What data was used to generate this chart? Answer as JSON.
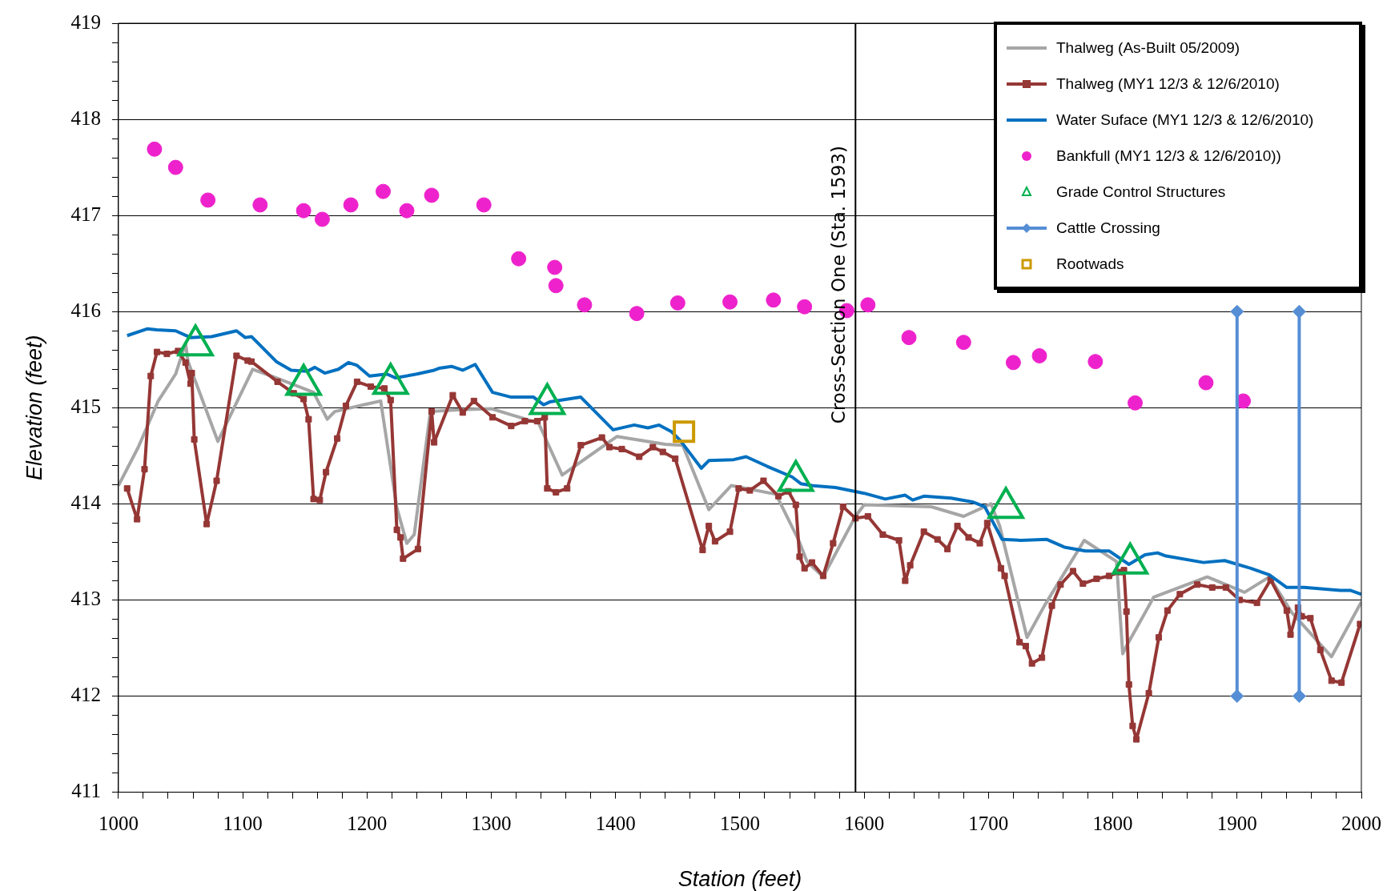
{
  "chart_data": {
    "type": "line",
    "xlabel": "Station (feet)",
    "ylabel": "Elevation (feet)",
    "xlim": [
      1000,
      2000
    ],
    "xticks": [
      1000,
      {
        "value": 1020,
        "label": null
      },
      {
        "value": 1040,
        "label": null
      },
      {
        "value": 1060,
        "label": null
      },
      {
        "value": 1080,
        "label": null
      },
      1100,
      {
        "value": 1120,
        "label": null
      },
      {
        "value": 1140,
        "label": null
      },
      {
        "value": 1160,
        "label": null
      },
      {
        "value": 1180,
        "label": null
      },
      1200,
      {
        "value": 1220,
        "label": null
      },
      {
        "value": 1240,
        "label": null
      },
      {
        "value": 1260,
        "label": null
      },
      {
        "value": 1280,
        "label": null
      },
      1300,
      {
        "value": 1320,
        "label": null
      },
      {
        "value": 1340,
        "label": null
      },
      {
        "value": 1360,
        "label": null
      },
      {
        "value": 1380,
        "label": null
      },
      1400,
      {
        "value": 1420,
        "label": null
      },
      {
        "value": 1440,
        "label": null
      },
      {
        "value": 1460,
        "label": null
      },
      {
        "value": 1480,
        "label": null
      },
      1500,
      {
        "value": 1520,
        "label": null
      },
      {
        "value": 1540,
        "label": null
      },
      {
        "value": 1560,
        "label": null
      },
      {
        "value": 1580,
        "label": null
      },
      1600,
      {
        "value": 1620,
        "label": null
      },
      {
        "value": 1640,
        "label": null
      },
      {
        "value": 1660,
        "label": null
      },
      {
        "value": 1680,
        "label": null
      },
      1700,
      {
        "value": 1720,
        "label": null
      },
      {
        "value": 1740,
        "label": null
      },
      {
        "value": 1760,
        "label": null
      },
      {
        "value": 1780,
        "label": null
      },
      1800,
      {
        "value": 1820,
        "label": null
      },
      {
        "value": 1840,
        "label": null
      },
      {
        "value": 1860,
        "label": null
      },
      {
        "value": 1880,
        "label": null
      },
      1900,
      {
        "value": 1920,
        "label": null
      },
      {
        "value": 1940,
        "label": null
      },
      {
        "value": 1960,
        "label": null
      },
      {
        "value": 1980,
        "label": null
      },
      2000
    ],
    "ylim": [
      411,
      419
    ],
    "yticks": [
      411,
      {
        "value": 411.2,
        "label": null
      },
      {
        "value": 411.4,
        "label": null
      },
      {
        "value": 411.6,
        "label": null
      },
      {
        "value": 411.8,
        "label": null
      },
      412,
      {
        "value": 412.2,
        "label": null
      },
      {
        "value": 412.4,
        "label": null
      },
      {
        "value": 412.6,
        "label": null
      },
      {
        "value": 412.8,
        "label": null
      },
      413,
      {
        "value": 413.2,
        "label": null
      },
      {
        "value": 413.4,
        "label": null
      },
      {
        "value": 413.6,
        "label": null
      },
      {
        "value": 413.8,
        "label": null
      },
      414,
      {
        "value": 414.2,
        "label": null
      },
      {
        "value": 414.4,
        "label": null
      },
      {
        "value": 414.6,
        "label": null
      },
      {
        "value": 414.8,
        "label": null
      },
      415,
      {
        "value": 415.2,
        "label": null
      },
      {
        "value": 415.4,
        "label": null
      },
      {
        "value": 415.6,
        "label": null
      },
      {
        "value": 415.8,
        "label": null
      },
      416,
      {
        "value": 416.2,
        "label": null
      },
      {
        "value": 416.4,
        "label": null
      },
      {
        "value": 416.6,
        "label": null
      },
      {
        "value": 416.8,
        "label": null
      },
      417,
      {
        "value": 417.2,
        "label": null
      },
      {
        "value": 417.4,
        "label": null
      },
      {
        "value": 417.6,
        "label": null
      },
      {
        "value": 417.8,
        "label": null
      },
      418,
      {
        "value": 418.2,
        "label": null
      },
      {
        "value": 418.4,
        "label": null
      },
      {
        "value": 418.6,
        "label": null
      },
      {
        "value": 418.8,
        "label": null
      },
      419
    ],
    "grid": "y",
    "legend": "top right",
    "ref_lines": [
      {
        "axis": "x",
        "value": 1593,
        "label": "Cross-Section One (Sta. 1593)",
        "color": "#000000"
      }
    ],
    "series": [
      {
        "name": "Thalweg (As-Built 05/2009)",
        "color": "#a6a6a6",
        "marker": "none",
        "x": [
          1000,
          1016,
          1032,
          1046,
          1054,
          1056,
          1080,
          1108,
          1125,
          1157,
          1168,
          1174,
          1197,
          1211,
          1224,
          1232,
          1238,
          1251,
          1275,
          1300,
          1315,
          1338,
          1357,
          1401,
          1440,
          1454,
          1475,
          1493,
          1529,
          1547,
          1554,
          1567,
          1593,
          1600,
          1654,
          1680,
          1702,
          1709,
          1731,
          1745,
          1777,
          1803,
          1808,
          1811,
          1833,
          1876,
          1906,
          1926,
          1944,
          1976,
          2000
        ],
        "values": [
          414.19,
          414.59,
          415.07,
          415.35,
          415.67,
          415.48,
          414.65,
          415.4,
          415.32,
          415.16,
          414.88,
          414.96,
          415.03,
          415.07,
          413.96,
          413.59,
          413.68,
          414.96,
          414.98,
          414.99,
          414.93,
          414.84,
          414.3,
          414.7,
          414.62,
          414.61,
          413.94,
          414.19,
          414.1,
          413.63,
          413.4,
          413.24,
          413.87,
          413.99,
          413.97,
          413.87,
          414.0,
          413.77,
          412.61,
          412.94,
          413.62,
          413.4,
          412.44,
          412.52,
          413.03,
          413.24,
          413.08,
          413.24,
          412.87,
          412.41,
          412.98
        ]
      },
      {
        "name": "Thalweg (MY1 12/3 & 12/6/2010)",
        "color": "#953735",
        "marker": "square",
        "x": [
          1007,
          1015,
          1021,
          1026,
          1031,
          1039,
          1048,
          1054,
          1058,
          1059,
          1061,
          1071,
          1079,
          1095,
          1104,
          1107,
          1128,
          1141,
          1149,
          1153,
          1157,
          1162,
          1167,
          1176,
          1183,
          1192,
          1203,
          1214,
          1219,
          1224,
          1227,
          1229,
          1241,
          1252,
          1254,
          1269,
          1277,
          1286,
          1301,
          1316,
          1327,
          1337,
          1343,
          1345,
          1352,
          1361,
          1372,
          1389,
          1395,
          1405,
          1419,
          1430,
          1438,
          1448,
          1470,
          1475,
          1480,
          1492,
          1499,
          1508,
          1519,
          1531,
          1539,
          1545,
          1548,
          1552,
          1558,
          1567,
          1575,
          1583,
          1593,
          1603,
          1615,
          1628,
          1633,
          1637,
          1648,
          1659,
          1667,
          1675,
          1684,
          1693,
          1699,
          1710,
          1713,
          1725,
          1730,
          1735,
          1743,
          1751,
          1758,
          1768,
          1776,
          1787,
          1797,
          1806,
          1809,
          1811,
          1813,
          1816,
          1819,
          1829,
          1837,
          1844,
          1854,
          1868,
          1880,
          1891,
          1902,
          1916,
          1927,
          1940,
          1943,
          1949,
          1952,
          1959,
          1967,
          1976,
          1984,
          1999
        ],
        "values": [
          414.16,
          413.84,
          414.36,
          415.33,
          415.58,
          415.56,
          415.59,
          415.47,
          415.25,
          415.36,
          414.67,
          413.79,
          414.24,
          415.54,
          415.49,
          415.48,
          415.27,
          415.15,
          415.09,
          414.88,
          414.05,
          414.04,
          414.33,
          414.68,
          415.02,
          415.27,
          415.22,
          415.2,
          415.08,
          413.73,
          413.65,
          413.43,
          413.53,
          414.96,
          414.64,
          415.13,
          414.95,
          415.07,
          414.9,
          414.81,
          414.86,
          414.86,
          414.9,
          414.16,
          414.12,
          414.16,
          414.61,
          414.69,
          414.59,
          414.57,
          414.49,
          414.59,
          414.54,
          414.47,
          413.52,
          413.77,
          413.61,
          413.71,
          414.16,
          414.14,
          414.24,
          414.08,
          414.13,
          413.99,
          413.45,
          413.33,
          413.39,
          413.25,
          413.59,
          413.97,
          413.85,
          413.87,
          413.68,
          413.62,
          413.2,
          413.36,
          413.71,
          413.63,
          413.53,
          413.77,
          413.65,
          413.59,
          413.8,
          413.33,
          413.25,
          412.56,
          412.52,
          412.34,
          412.4,
          412.94,
          413.16,
          413.3,
          413.17,
          413.22,
          413.25,
          413.29,
          413.31,
          412.88,
          412.12,
          411.69,
          411.55,
          412.03,
          412.61,
          412.89,
          413.06,
          413.16,
          413.13,
          413.13,
          413.0,
          412.97,
          413.21,
          412.89,
          412.64,
          412.92,
          412.83,
          412.81,
          412.48,
          412.16,
          412.14,
          412.75
        ]
      },
      {
        "name": "Water Suface (MY1 12/3 & 12/6/2010)",
        "color": "#0070c0",
        "marker": "none",
        "x": [
          1007,
          1023,
          1031,
          1046,
          1058,
          1075,
          1095,
          1102,
          1107,
          1127,
          1139,
          1152,
          1158,
          1166,
          1177,
          1185,
          1192,
          1202,
          1216,
          1223,
          1240,
          1254,
          1258,
          1268,
          1277,
          1287,
          1301,
          1316,
          1334,
          1342,
          1347,
          1372,
          1398,
          1415,
          1426,
          1435,
          1445,
          1452,
          1469,
          1475,
          1495,
          1505,
          1522,
          1542,
          1549,
          1558,
          1577,
          1600,
          1617,
          1633,
          1639,
          1648,
          1670,
          1687,
          1697,
          1711,
          1726,
          1747,
          1761,
          1778,
          1797,
          1813,
          1826,
          1836,
          1842,
          1873,
          1890,
          1911,
          1926,
          1940,
          1954,
          1983,
          1991,
          2000
        ],
        "values": [
          415.75,
          415.82,
          415.81,
          415.8,
          415.73,
          415.74,
          415.8,
          415.73,
          415.74,
          415.48,
          415.39,
          415.38,
          415.42,
          415.36,
          415.4,
          415.47,
          415.44,
          415.33,
          415.35,
          415.31,
          415.35,
          415.39,
          415.41,
          415.43,
          415.39,
          415.45,
          415.16,
          415.11,
          415.11,
          415.03,
          415.06,
          415.11,
          414.77,
          414.82,
          414.79,
          414.82,
          414.75,
          414.66,
          414.37,
          414.45,
          414.46,
          414.49,
          414.39,
          414.28,
          414.21,
          414.19,
          414.17,
          414.11,
          414.05,
          414.09,
          414.04,
          414.08,
          414.06,
          414.02,
          413.97,
          413.63,
          413.62,
          413.63,
          413.55,
          413.51,
          413.51,
          413.37,
          413.47,
          413.49,
          413.46,
          413.39,
          413.41,
          413.33,
          413.26,
          413.13,
          413.13,
          413.1,
          413.1,
          413.06
        ]
      },
      {
        "name": "Bankfull (MY1 12/3 & 12/6/2010))",
        "type": "scatter",
        "color": "#ee22cc",
        "marker": "circle",
        "x": [
          1029,
          1046,
          1072,
          1114,
          1149,
          1164,
          1187,
          1213,
          1232,
          1252,
          1294,
          1322,
          1351,
          1352,
          1375,
          1417,
          1450,
          1492,
          1527,
          1552,
          1586,
          1603,
          1636,
          1680,
          1720,
          1741,
          1786,
          1818,
          1875,
          1905
        ],
        "values": [
          417.69,
          417.5,
          417.16,
          417.11,
          417.05,
          416.96,
          417.11,
          417.25,
          417.05,
          417.21,
          417.11,
          416.55,
          416.46,
          416.27,
          416.07,
          415.98,
          416.09,
          416.1,
          416.12,
          416.05,
          416.01,
          416.07,
          415.73,
          415.68,
          415.47,
          415.54,
          415.48,
          415.05,
          415.26,
          415.07
        ]
      },
      {
        "name": "Grade Control Structures",
        "type": "scatter",
        "color": "#00b050",
        "marker": "triangle",
        "x": [
          1062,
          1149,
          1219,
          1345,
          1545,
          1714,
          1814
        ],
        "values": [
          415.65,
          415.24,
          415.25,
          415.04,
          414.24,
          413.96,
          413.38
        ]
      },
      {
        "name": "Cattle Crossing",
        "color": "#558ed5",
        "marker": "diamond",
        "x": [
          1900,
          1900
        ],
        "values": [
          412,
          416
        ]
      },
      {
        "color": "#558ed5",
        "marker": "diamond",
        "x": [
          1950,
          1950
        ],
        "values": [
          412,
          416
        ]
      },
      {
        "name": "Rootwads",
        "type": "scatter",
        "color": "#cc9900",
        "marker": "square",
        "x": [
          1455
        ],
        "values": [
          414.75
        ]
      }
    ]
  }
}
